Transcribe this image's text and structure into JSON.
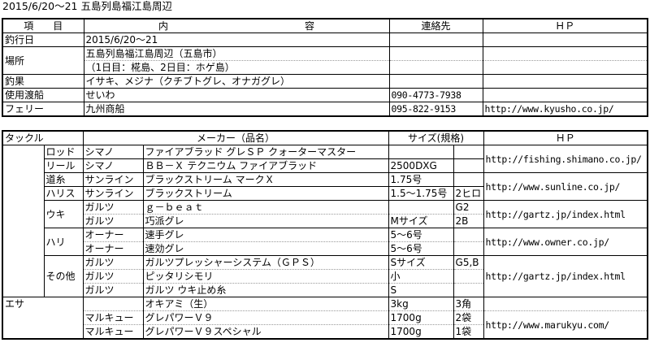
{
  "title": "2015/6/20～21 五島列島福江島周辺",
  "summary": {
    "headers": {
      "item": "項　　目",
      "content": "内　　　　　　　　　　　　　　容",
      "contact": "連絡先",
      "hp": "ＨＰ"
    },
    "rows": {
      "date": {
        "label": "釣行日",
        "value": "2015/6/20～21"
      },
      "place": {
        "label": "場所",
        "value": "五島列島福江島周辺（五島市）",
        "value2": "（1日目：椛島、2日目：ホゲ島）"
      },
      "catch": {
        "label": "釣果",
        "value": "イサキ、メジナ（クチブトグレ、オナガグレ）"
      },
      "boat": {
        "label": "使用渡船",
        "value": "せいわ",
        "contact": "090-4773-7938"
      },
      "ferry": {
        "label": "フェリー",
        "value": "九州商船",
        "contact": "095-822-9153",
        "hp": "http://www.kyusho.co.jp/"
      }
    }
  },
  "tackle": {
    "headers": {
      "category": "タックル",
      "maker": "メーカー（品名）",
      "size": "サイズ(規格)",
      "hp": "ＨＰ"
    },
    "sections": [
      {
        "hp": "http://fishing.shimano.co.jp/",
        "types": [
          {
            "type": "ロッド",
            "items": [
              {
                "maker": "シマノ",
                "product": "ファイアブラッド グレＳＰ クォーターマスター",
                "size": "",
                "spec": ""
              }
            ]
          },
          {
            "type": "リール",
            "items": [
              {
                "maker": "シマノ",
                "product": "ＢＢ－Ｘ テクニウム ファイアブラッド",
                "size": "2500DXG",
                "spec": ""
              }
            ]
          }
        ]
      },
      {
        "hp": "http://www.sunline.co.jp/",
        "types": [
          {
            "type": "道糸",
            "items": [
              {
                "maker": "サンライン",
                "product": "ブラックストリーム マークＸ",
                "size": "1.75号",
                "spec": ""
              }
            ]
          },
          {
            "type": "ハリス",
            "items": [
              {
                "maker": "サンライン",
                "product": "ブラックストリーム",
                "size": "1.5～1.75号",
                "spec": "2ヒロ"
              }
            ]
          }
        ]
      },
      {
        "hp": "http://gartz.jp/index.html",
        "types": [
          {
            "type": "ウキ",
            "items": [
              {
                "maker": "ガルツ",
                "product": "ｇ－ｂｅａｔ",
                "size": "",
                "spec": "G2"
              },
              {
                "maker": "ガルツ",
                "product": "巧派グレ",
                "size": "Mサイズ",
                "spec": "2B"
              }
            ]
          }
        ]
      },
      {
        "hp": "http://www.owner.co.jp/",
        "types": [
          {
            "type": "ハリ",
            "items": [
              {
                "maker": "オーナー",
                "product": "速手グレ",
                "size": "5～6号",
                "spec": ""
              },
              {
                "maker": "オーナー",
                "product": "速効グレ",
                "size": "5～6号",
                "spec": ""
              }
            ]
          }
        ]
      },
      {
        "hp": "http://gartz.jp/index.html",
        "types": [
          {
            "type": "その他",
            "items": [
              {
                "maker": "ガルツ",
                "product": "ガルツプレッシャーシステム（ＧＰＳ）",
                "size": "Sサイズ",
                "spec": "G5,B"
              },
              {
                "maker": "ガルツ",
                "product": "ピッタリシモリ",
                "size": "小",
                "spec": ""
              },
              {
                "maker": "ガルツ",
                "product": "ガルツ ウキ止め糸",
                "size": "S",
                "spec": ""
              }
            ]
          }
        ]
      }
    ]
  },
  "bait": {
    "category": "エサ",
    "sections": [
      {
        "hp": "",
        "items": [
          {
            "maker": "",
            "product": "オキアミ（生）",
            "size": "3kg",
            "spec": "3角"
          }
        ]
      },
      {
        "hp": "http://www.marukyu.com/",
        "items": [
          {
            "maker": "マルキュー",
            "product": "グレパワーＶ９",
            "size": "1700g",
            "spec": "2袋"
          },
          {
            "maker": "マルキュー",
            "product": "グレパワーＶ９スペシャル",
            "size": "1700g",
            "spec": "1袋"
          }
        ]
      }
    ]
  }
}
